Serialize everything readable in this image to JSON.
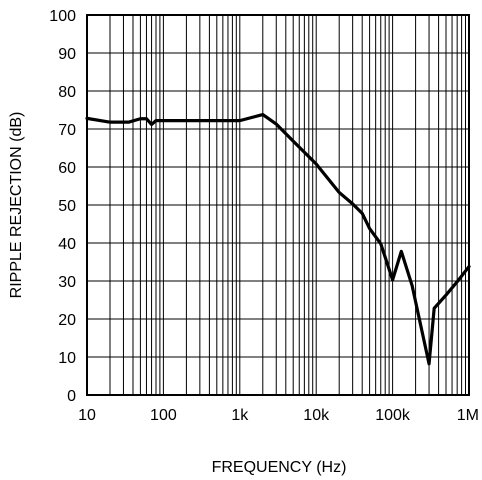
{
  "chart_data": {
    "type": "line",
    "title": "",
    "xlabel": "FREQUENCY (Hz)",
    "ylabel": "RIPPLE REJECTION (dB)",
    "x_scale": "log",
    "xlim": [
      10,
      1000000
    ],
    "ylim": [
      0,
      100
    ],
    "grid": true,
    "x_tick_values": [
      10,
      100,
      1000,
      10000,
      100000,
      1000000
    ],
    "x_tick_labels": [
      "10",
      "100",
      "1k",
      "10k",
      "100k",
      "1M"
    ],
    "y_tick_values": [
      0,
      10,
      20,
      30,
      40,
      50,
      60,
      70,
      80,
      90,
      100
    ],
    "y_tick_labels": [
      "0",
      "10",
      "20",
      "30",
      "40",
      "50",
      "60",
      "70",
      "80",
      "90",
      "100"
    ],
    "series": [
      {
        "color": "#000000",
        "points": [
          {
            "x": 10,
            "y": 72.8
          },
          {
            "x": 20,
            "y": 71.8
          },
          {
            "x": 35,
            "y": 71.8
          },
          {
            "x": 50,
            "y": 72.7
          },
          {
            "x": 60,
            "y": 72.7
          },
          {
            "x": 70,
            "y": 71.2
          },
          {
            "x": 80,
            "y": 72.2
          },
          {
            "x": 150,
            "y": 72.2
          },
          {
            "x": 1000,
            "y": 72.2
          },
          {
            "x": 2000,
            "y": 73.8
          },
          {
            "x": 3000,
            "y": 71.3
          },
          {
            "x": 5000,
            "y": 66.8
          },
          {
            "x": 10000,
            "y": 60.8
          },
          {
            "x": 20000,
            "y": 53.3
          },
          {
            "x": 30000,
            "y": 50.3
          },
          {
            "x": 40000,
            "y": 47.8
          },
          {
            "x": 50000,
            "y": 43.8
          },
          {
            "x": 70000,
            "y": 39.8
          },
          {
            "x": 100000,
            "y": 30.3
          },
          {
            "x": 130000,
            "y": 37.8
          },
          {
            "x": 180000,
            "y": 28.8
          },
          {
            "x": 300000,
            "y": 8.2
          },
          {
            "x": 350000,
            "y": 22.8
          },
          {
            "x": 500000,
            "y": 26.3
          },
          {
            "x": 700000,
            "y": 29.8
          },
          {
            "x": 1000000,
            "y": 33.8
          }
        ]
      }
    ]
  }
}
